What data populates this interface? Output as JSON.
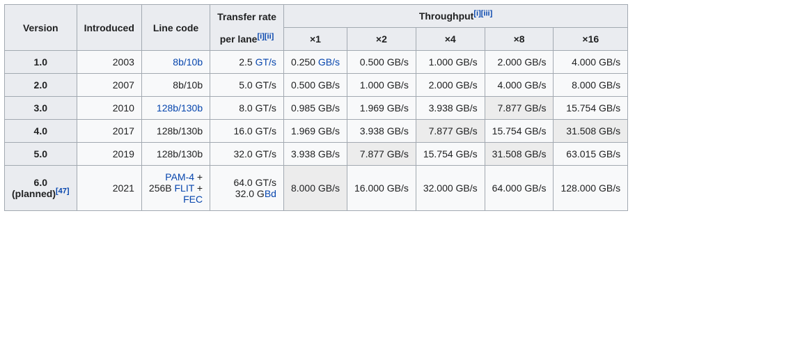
{
  "headers": {
    "version": "Version",
    "introduced": "Intro­duced",
    "line_code": "Line code",
    "transfer_rate_l1": "Transfer rate",
    "transfer_rate_l2": "per lane",
    "throughput": "Throughput",
    "x1": "×1",
    "x2": "×2",
    "x4": "×4",
    "x8": "×8",
    "x16": "×16"
  },
  "refs": {
    "i": "[i]",
    "ii": "[ii]",
    "iii": "[iii]",
    "47": "[47]"
  },
  "linktext": {
    "8b10b": "8b/10b",
    "128b130b": "128b/130b",
    "pam4": "PAM-4",
    "flit": "FLIT",
    "fec": "FEC",
    "gt_s": "GT/s",
    "gb_s": "GB/s",
    "bd": "Bd"
  },
  "rows": [
    {
      "version": "1.0",
      "year": "2003",
      "line_code_plain": "",
      "line_code_link": "8b10b",
      "transfer_prefix": "2.5 ",
      "x1_val": "0.250 ",
      "x2_val": "0.500 GB/s",
      "x4_val": "1.000 GB/s",
      "x8_val": "2.000 GB/s",
      "x16_val": "4.000 GB/s",
      "shaded": []
    },
    {
      "version": "2.0",
      "year": "2007",
      "line_code_plain": "8b/10b",
      "transfer_prefix": "5.0 GT/s",
      "x1_val": "0.500 GB/s",
      "x2_val": "1.000 GB/s",
      "x4_val": "2.000 GB/s",
      "x8_val": "4.000 GB/s",
      "x16_val": "8.000 GB/s",
      "shaded": []
    },
    {
      "version": "3.0",
      "year": "2010",
      "line_code_link": "128b130b",
      "transfer_prefix": "8.0 GT/s",
      "x1_val": "0.985 GB/s",
      "x2_val": "1.969 GB/s",
      "x4_val": "3.938 GB/s",
      "x8_val": "7.877 GB/s",
      "x16_val": "15.754 GB/s",
      "shaded": [
        "x8"
      ]
    },
    {
      "version": "4.0",
      "year": "2017",
      "line_code_plain": "128b/130b",
      "transfer_prefix": "16.0 GT/s",
      "x1_val": "1.969 GB/s",
      "x2_val": "3.938 GB/s",
      "x4_val": "7.877 GB/s",
      "x8_val": "15.754 GB/s",
      "x16_val": "31.508 GB/s",
      "shaded": [
        "x4",
        "x16"
      ]
    },
    {
      "version": "5.0",
      "year": "2019",
      "line_code_plain": "128b/130b",
      "transfer_prefix": "32.0 GT/s",
      "x1_val": "3.938 GB/s",
      "x2_val": "7.877 GB/s",
      "x4_val": "15.754 GB/s",
      "x8_val": "31.508 GB/s",
      "x16_val": "63.015 GB/s",
      "shaded": [
        "x2",
        "x8"
      ]
    },
    {
      "version_line1": "6.0",
      "version_line2_pre": "(planned)",
      "version_ref": "47",
      "year": "2021",
      "line_code_complex": true,
      "plus": " + ",
      "flit_prefix": "256B ",
      "transfer_l1_pre": "64.0 GT/s",
      "transfer_l2_pre": "32.0 G",
      "x1_val": "8.000 GB/s",
      "x2_val": "16.000 GB/s",
      "x4_val": "32.000 GB/s",
      "x8_val": "64.000 GB/s",
      "x16_val": "128.000 GB/s",
      "shaded": [
        "x1"
      ]
    }
  ]
}
